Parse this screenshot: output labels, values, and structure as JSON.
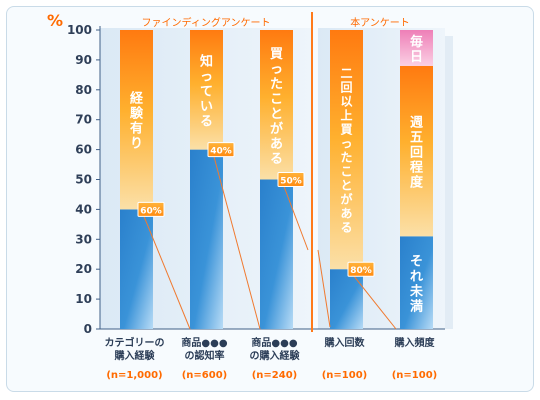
{
  "chart_data": {
    "type": "bar",
    "stacked": true,
    "y_unit": "%",
    "ylim": [
      0,
      100
    ],
    "yticks": [
      0,
      10,
      20,
      30,
      40,
      50,
      60,
      70,
      80,
      90,
      100
    ],
    "grid": false,
    "sections": [
      {
        "label": "ファインディングアンケート"
      },
      {
        "label": "本アンケート"
      }
    ],
    "bars": [
      {
        "category": [
          "カテゴリーの",
          "購入経験"
        ],
        "n": "(n=1,000)",
        "segments": [
          {
            "name": "",
            "value": 40,
            "color": "#2e86d0"
          },
          {
            "name": "経験有り",
            "value": 60,
            "color": "#ff8a1a"
          }
        ],
        "callout": "60%"
      },
      {
        "category": [
          "商品●●●",
          "の認知率"
        ],
        "n": "(n=600)",
        "segments": [
          {
            "name": "",
            "value": 60,
            "color": "#2e86d0"
          },
          {
            "name": "知っている",
            "value": 40,
            "color": "#ff8a1a"
          }
        ],
        "callout": "40%"
      },
      {
        "category": [
          "商品●●●",
          "の購入経験"
        ],
        "n": "(n=240)",
        "segments": [
          {
            "name": "",
            "value": 50,
            "color": "#2e86d0"
          },
          {
            "name": "買ったことがある",
            "value": 50,
            "color": "#ff8a1a"
          }
        ],
        "callout": "50%"
      },
      {
        "category": [
          "購入回数"
        ],
        "n": "(n=100)",
        "segments": [
          {
            "name": "",
            "value": 20,
            "color": "#2e86d0"
          },
          {
            "name": "二回以上買ったことがある",
            "value": 80,
            "color": "#ff8a1a"
          }
        ],
        "callout": "80%"
      },
      {
        "category": [
          "購入頻度"
        ],
        "n": "(n=100)",
        "segments": [
          {
            "name": "それ未満",
            "value": 31,
            "color": "#2e86d0"
          },
          {
            "name": "週五回程度",
            "value": 57,
            "color": "#ff8a1a"
          },
          {
            "name": "毎日",
            "value": 12,
            "color": "#f08cbf"
          }
        ]
      }
    ]
  }
}
